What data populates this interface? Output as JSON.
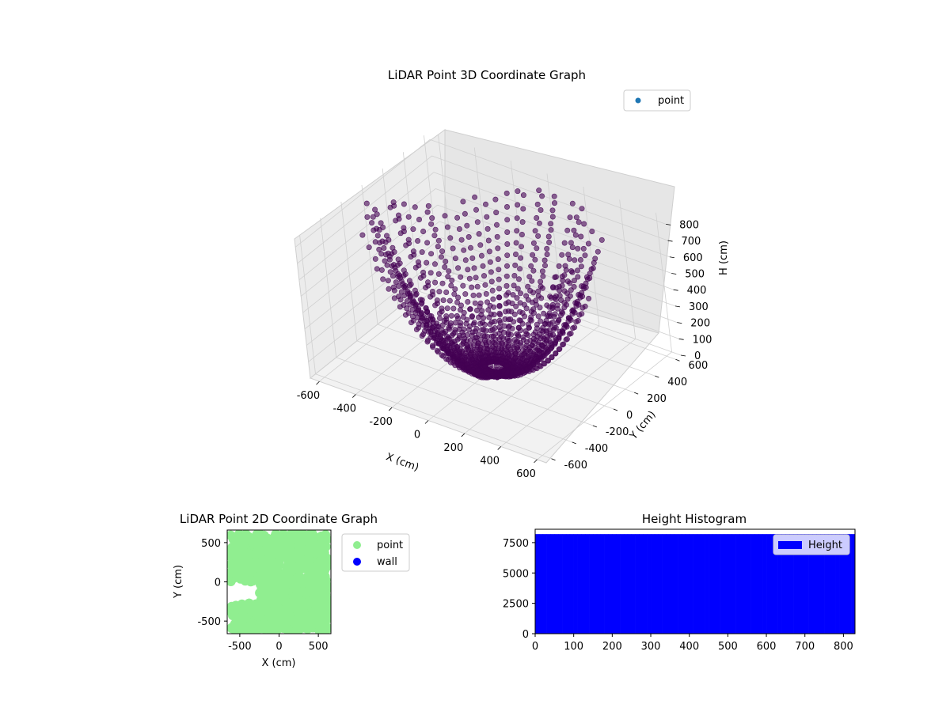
{
  "chart_data": [
    {
      "type": "scatter",
      "projection": "3d",
      "title": "LiDAR Point 3D Coordinate Graph",
      "xlabel": "X (cm)",
      "ylabel": "Y (cm)",
      "zlabel": "H (cm)",
      "xlim": [
        -650,
        650
      ],
      "ylim": [
        -650,
        650
      ],
      "zlim": [
        0,
        850
      ],
      "z_inverted": true,
      "x_ticks": [
        "-600",
        "-400",
        "-200",
        "0",
        "200",
        "400",
        "600"
      ],
      "y_ticks": [
        "-600",
        "-400",
        "-200",
        "0",
        "200",
        "400",
        "600"
      ],
      "z_ticks": [
        "0",
        "100",
        "200",
        "300",
        "400",
        "500",
        "600",
        "700",
        "800"
      ],
      "legend": {
        "entries": [
          "point"
        ],
        "position": "top-right"
      },
      "grid": true,
      "colors": {
        "legend_marker": "#1f77b4",
        "points": "#440154"
      },
      "series": [
        {
          "name": "point",
          "structure": "polar scan fans: 64 azimuth lines from the origin, radius 50 to 600 cm, height rising as points move outward",
          "azimuth_count": 64,
          "radius_range": [
            50,
            600
          ],
          "height_range": [
            0,
            800
          ]
        }
      ]
    },
    {
      "type": "scatter",
      "title": "LiDAR Point 2D Coordinate Graph",
      "xlabel": "X (cm)",
      "ylabel": "Y (cm)",
      "xlim": [
        -660,
        660
      ],
      "ylim": [
        -660,
        660
      ],
      "x_ticks": [
        "-500",
        "0",
        "500"
      ],
      "y_ticks": [
        "-500",
        "0",
        "500"
      ],
      "legend": {
        "entries": [
          "point",
          "wall"
        ],
        "position": "outside-right"
      },
      "colors": {
        "point": "#90ee90",
        "wall": "#0000ff"
      },
      "series": [
        {
          "name": "point",
          "x_range": [
            -650,
            650
          ],
          "y_range": [
            -650,
            650
          ]
        },
        {
          "name": "wall",
          "values": []
        }
      ]
    },
    {
      "type": "bar",
      "title": "Height Histogram",
      "xlim": [
        0,
        830
      ],
      "ylim": [
        0,
        8600
      ],
      "x_ticks": [
        "0",
        "100",
        "200",
        "300",
        "400",
        "500",
        "600",
        "700",
        "800"
      ],
      "y_ticks": [
        "0",
        "2500",
        "5000",
        "7500"
      ],
      "legend": {
        "entries": [
          "Height"
        ],
        "position": "top-right"
      },
      "colors": {
        "bars": "#0000ff"
      },
      "series": [
        {
          "name": "Height",
          "bin_range": [
            0,
            830
          ],
          "count_per_bin": 8200
        }
      ]
    }
  ]
}
